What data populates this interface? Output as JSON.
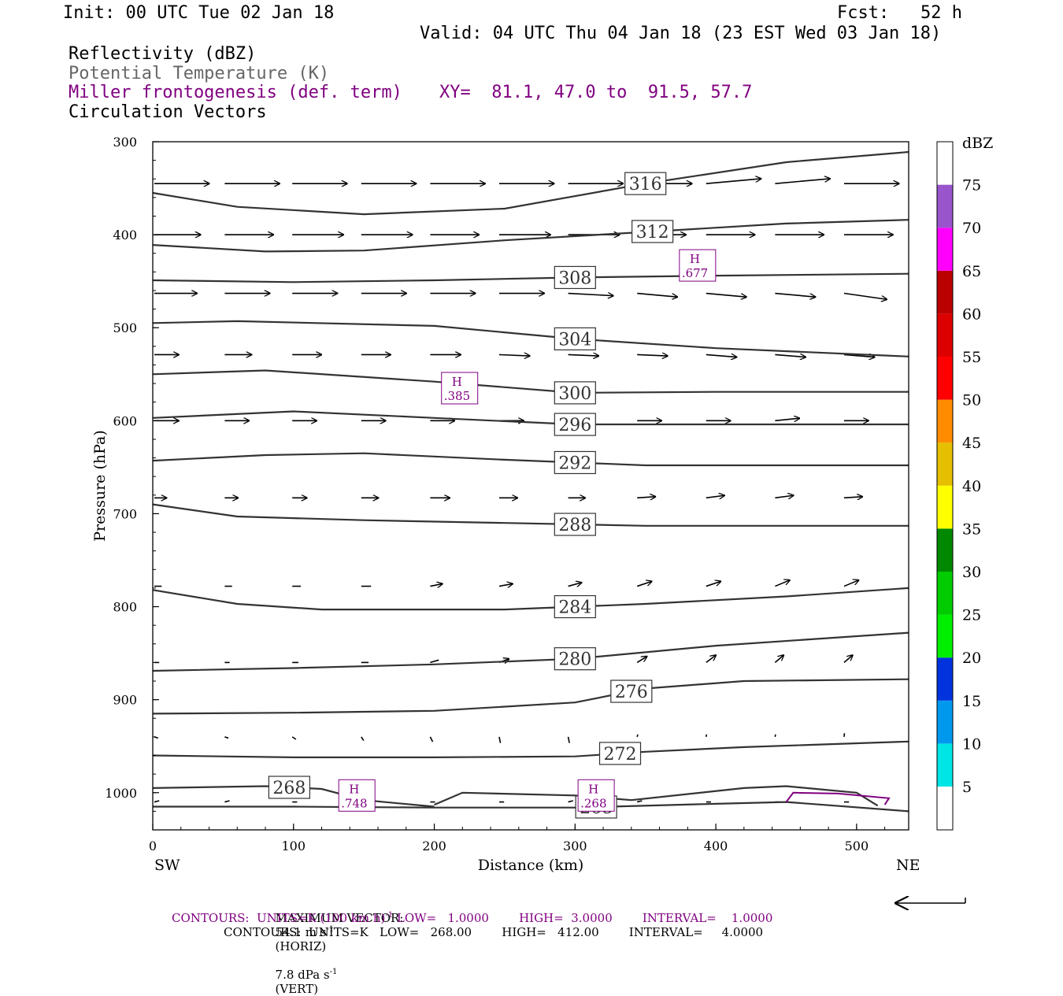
{
  "header": {
    "init": "Init: 00 UTC Tue 02 Jan 18",
    "fcst": "Fcst:   52 h",
    "valid": "Valid: 04 UTC Thu 04 Jan 18 (23 EST Wed 03 Jan 18)",
    "field1": "Reflectivity (dBZ)",
    "field2": "Potential Temperature (K)",
    "field3": "Miller frontogenesis (def. term)",
    "xy": "XY=  81.1, 47.0 to  91.5, 57.7",
    "field4": "Circulation Vectors"
  },
  "footer": {
    "max_vector_label": "MAXIMUM VECTOR:",
    "max_horiz": "54.1 m s",
    "horiz_tag": "(HORIZ)",
    "max_vert": "7.8 dPa s",
    "vert_tag": "(VERT)",
    "neg1": "-1",
    "contour1": "CONTOURS:  UNITS=K (100 km h)",
    "contour1_rest": " LOW=   1.0000        HIGH=  3.0000        INTERVAL=    1.0000",
    "contour2": "CONTOURS:  UNITS=K   LOW=   268.00        HIGH=   412.00        INTERVAL=     4.0000"
  },
  "chart_data": {
    "type": "line",
    "title": "",
    "xlabel": "Distance (km)",
    "ylabel": "Pressure (hPa)",
    "xlim": [
      0,
      537
    ],
    "ylim": [
      1040,
      300
    ],
    "x_ticks": [
      0,
      100,
      200,
      300,
      400,
      500
    ],
    "y_ticks": [
      300,
      400,
      500,
      600,
      700,
      800,
      900,
      1000
    ],
    "x_end_labels": {
      "left": "SW",
      "right": "NE"
    },
    "colorbar": {
      "unit": "dBZ",
      "levels": [
        5,
        10,
        15,
        20,
        25,
        30,
        35,
        40,
        45,
        50,
        55,
        60,
        65,
        70,
        75
      ],
      "colors": [
        "#00e5e5",
        "#0099ee",
        "#0033dd",
        "#00ee00",
        "#00cc00",
        "#008800",
        "#ffff00",
        "#e5bf00",
        "#ff8c00",
        "#ff0000",
        "#dd0000",
        "#bb0000",
        "#ff00ff",
        "#9955cc",
        "#ffffff"
      ]
    },
    "isentropes": [
      {
        "theta": "316",
        "x": [
          0,
          60,
          150,
          250,
          350,
          450,
          537
        ],
        "p": [
          355,
          370,
          378,
          372,
          345,
          322,
          311
        ],
        "label_x": 350
      },
      {
        "theta": "312",
        "x": [
          0,
          80,
          150,
          250,
          350,
          450,
          537
        ],
        "p": [
          411,
          418,
          417,
          406,
          397,
          388,
          384
        ],
        "label_x": 355
      },
      {
        "theta": "308",
        "x": [
          0,
          100,
          200,
          300,
          400,
          537
        ],
        "p": [
          449,
          451,
          449,
          446,
          444,
          442
        ],
        "label_x": 300
      },
      {
        "theta": "304",
        "x": [
          0,
          60,
          200,
          300,
          400,
          537
        ],
        "p": [
          495,
          493,
          498,
          512,
          522,
          531
        ],
        "label_x": 300
      },
      {
        "theta": "300",
        "x": [
          0,
          80,
          200,
          300,
          400,
          537
        ],
        "p": [
          550,
          546,
          558,
          570,
          569,
          569
        ],
        "label_x": 300
      },
      {
        "theta": "296",
        "x": [
          0,
          100,
          200,
          300,
          400,
          537
        ],
        "p": [
          597,
          590,
          597,
          604,
          604,
          604
        ],
        "label_x": 300
      },
      {
        "theta": "292",
        "x": [
          0,
          80,
          150,
          250,
          350,
          537
        ],
        "p": [
          643,
          637,
          635,
          642,
          648,
          648
        ],
        "label_x": 300
      },
      {
        "theta": "288",
        "x": [
          0,
          60,
          150,
          250,
          350,
          537
        ],
        "p": [
          690,
          703,
          707,
          710,
          713,
          713
        ],
        "label_x": 300
      },
      {
        "theta": "284",
        "x": [
          0,
          60,
          120,
          250,
          350,
          450,
          537
        ],
        "p": [
          782,
          797,
          803,
          803,
          797,
          789,
          780
        ],
        "label_x": 300
      },
      {
        "theta": "280",
        "x": [
          0,
          100,
          200,
          300,
          400,
          537
        ],
        "p": [
          869,
          866,
          862,
          856,
          842,
          828
        ],
        "label_x": 300
      },
      {
        "theta": "276",
        "x": [
          0,
          100,
          200,
          300,
          350,
          420,
          537
        ],
        "p": [
          915,
          914,
          912,
          903,
          888,
          880,
          878
        ],
        "label_x": 340
      },
      {
        "theta": "272",
        "x": [
          0,
          100,
          200,
          300,
          350,
          420,
          537
        ],
        "p": [
          960,
          962,
          962,
          961,
          956,
          951,
          945
        ],
        "label_x": 332
      },
      {
        "theta": "268",
        "x": [
          0,
          80,
          120,
          150,
          200
        ],
        "p": [
          995,
          993,
          996,
          1008,
          1015
        ],
        "label_x": 97
      },
      {
        "theta": "",
        "x": [
          200,
          220,
          300,
          340,
          420,
          450,
          500,
          515
        ],
        "p": [
          1013,
          1000,
          1003,
          1008,
          995,
          993,
          1000,
          1014
        ],
        "label_x": -1
      },
      {
        "theta": "268",
        "x": [
          0,
          100,
          200,
          300,
          400,
          450,
          537
        ],
        "p": [
          1015,
          1015,
          1016,
          1016,
          1012,
          1010,
          1020
        ],
        "label_x": 315
      }
    ],
    "frontogenesis_maxima": [
      {
        "label": "H",
        "value": ".677",
        "x": 387,
        "p": 433
      },
      {
        "label": "H",
        "value": ".385",
        "x": 218,
        "p": 565
      },
      {
        "label": "H",
        "value": ".748",
        "x": 145,
        "p": 1003
      },
      {
        "label": "H",
        "value": ".268",
        "x": 315,
        "p": 1003
      }
    ],
    "frontogenesis_contour": {
      "x": [
        450,
        455,
        487,
        523,
        520
      ],
      "p": [
        1010,
        1000,
        1001,
        1006,
        1013
      ]
    },
    "circulation_vectors": {
      "x": [
        0,
        50,
        98,
        147,
        196,
        245,
        294,
        343,
        392,
        441,
        490
      ],
      "rows": [
        {
          "p": 345,
          "dx": [
            45,
            45,
            45,
            45,
            45,
            45,
            45,
            45,
            45,
            45,
            45
          ],
          "dp": [
            0,
            0,
            0,
            0,
            0,
            0,
            0,
            0,
            -4,
            -4,
            0
          ]
        },
        {
          "p": 400,
          "dx": [
            38,
            40,
            42,
            42,
            40,
            42,
            42,
            40,
            40,
            40,
            40
          ],
          "dp": [
            0,
            0,
            0,
            0,
            0,
            0,
            0,
            0,
            0,
            0,
            0
          ]
        },
        {
          "p": 463,
          "dx": [
            35,
            37,
            37,
            37,
            37,
            37,
            37,
            33,
            33,
            33,
            35
          ],
          "dp": [
            0,
            0,
            0,
            0,
            0,
            0,
            2,
            3,
            3,
            3,
            5
          ]
        },
        {
          "p": 529,
          "dx": [
            20,
            22,
            24,
            24,
            25,
            25,
            25,
            25,
            25,
            25,
            25
          ],
          "dp": [
            0,
            0,
            0,
            0,
            0,
            1,
            1,
            1,
            2,
            2,
            2
          ]
        },
        {
          "p": 600,
          "dx": [
            20,
            20,
            20,
            20,
            20,
            20,
            20,
            20,
            20,
            20,
            20
          ],
          "dp": [
            0,
            0,
            0,
            0,
            0,
            0,
            0,
            0,
            0,
            -2,
            0
          ]
        },
        {
          "p": 683,
          "dx": [
            10,
            11,
            12,
            14,
            16,
            15,
            14,
            15,
            15,
            15,
            15
          ],
          "dp": [
            0,
            0,
            0,
            0,
            0,
            0,
            0,
            -1,
            -2,
            -2,
            -1
          ]
        },
        {
          "p": 778,
          "dx": [
            6,
            6,
            7,
            8,
            10,
            11,
            11,
            12,
            12,
            12,
            12
          ],
          "dp": [
            0,
            0,
            0,
            0,
            -2,
            -2,
            -3,
            -4,
            -4,
            -5,
            -5
          ]
        },
        {
          "p": 860,
          "dx": [
            4,
            4,
            5,
            6,
            7,
            8,
            8,
            8,
            8,
            7,
            7
          ],
          "dp": [
            0,
            0,
            0,
            0,
            -2,
            -3,
            -5,
            -5,
            -6,
            -6,
            -6
          ]
        },
        {
          "p": 940,
          "dx": [
            3,
            3,
            3,
            2,
            2,
            1,
            1,
            0.5,
            0.3,
            0.3,
            0.3
          ],
          "dp": [
            1,
            1,
            2,
            3,
            4,
            5,
            5,
            -2,
            -2,
            -2,
            -3
          ]
        },
        {
          "p": 1010,
          "dx": [
            4,
            4,
            4,
            4,
            4,
            4,
            4,
            4,
            4,
            4,
            4
          ],
          "dp": [
            -1,
            -1,
            0,
            0,
            0,
            0,
            -1,
            -1,
            0,
            0,
            0
          ]
        }
      ]
    },
    "reference_vector": "54.1 m s-1"
  }
}
